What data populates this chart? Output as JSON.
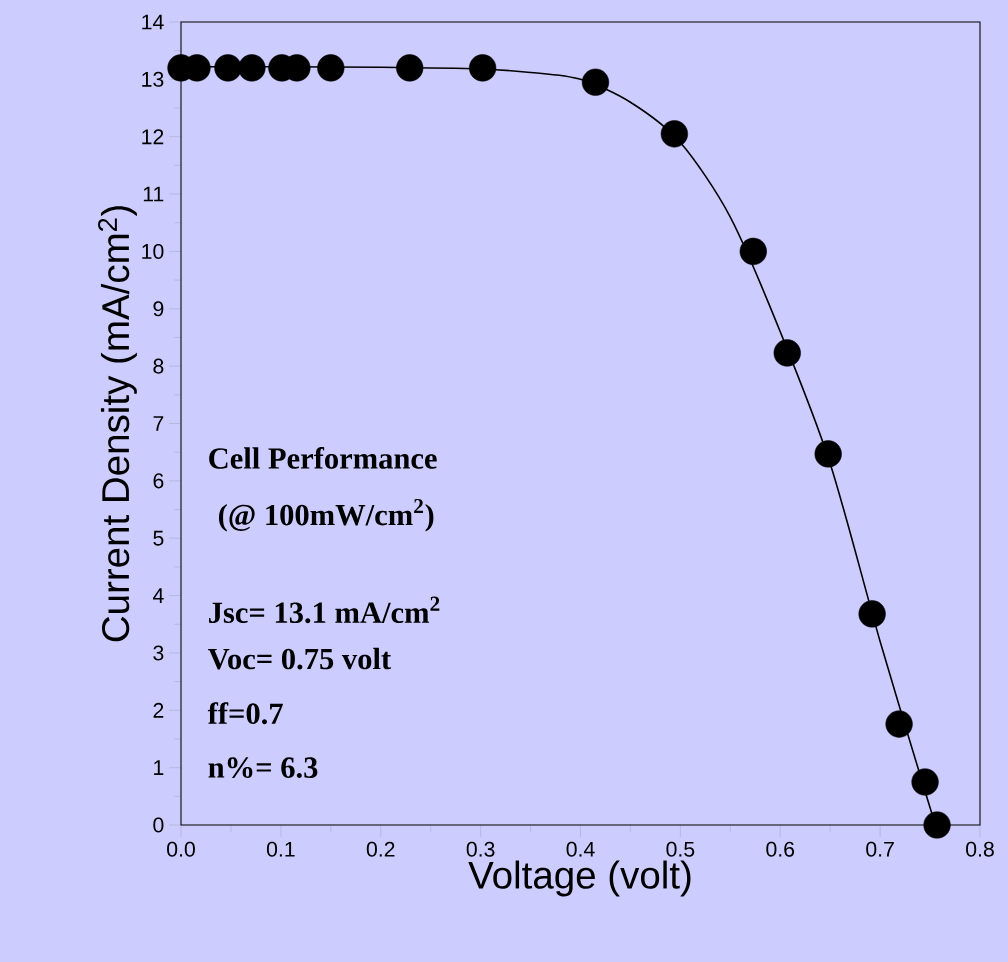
{
  "chart_data": {
    "type": "scatter",
    "xlabel": "Voltage (volt)",
    "ylabel": "Current Density (mA/cm$^{2}$)",
    "xlim": [
      0,
      0.8
    ],
    "ylim": [
      0,
      14
    ],
    "xticks": [
      {
        "value": 0,
        "label": "0.0"
      },
      0.1,
      0.2,
      0.3,
      0.4,
      0.5,
      0.6,
      0.7,
      0.8
    ],
    "yticks": [
      0,
      1,
      2,
      3,
      4,
      5,
      6,
      7,
      8,
      9,
      10,
      11,
      12,
      13,
      14
    ],
    "series": [
      {
        "marker": "circle",
        "color": "#000000",
        "x": [
          0,
          0.016,
          0.047,
          0.071,
          0.101,
          0.116,
          0.15,
          0.229,
          0.302,
          0.415,
          0.494,
          0.573,
          0.607,
          0.648,
          0.692,
          0.719,
          0.745,
          0.757
        ],
        "values": [
          13.2,
          13.2,
          13.2,
          13.2,
          13.2,
          13.2,
          13.2,
          13.2,
          13.2,
          12.95,
          12.05,
          10.0,
          8.23,
          6.47,
          3.68,
          1.76,
          0.75,
          0
        ]
      },
      {
        "type": "line",
        "marker": "none",
        "color": "#000000",
        "x": [
          0,
          0.1,
          0.2,
          0.3,
          0.35,
          0.4,
          0.45,
          0.5,
          0.55,
          0.6,
          0.65,
          0.7,
          0.75,
          0.757
        ],
        "values": [
          13.22,
          13.22,
          13.21,
          13.18,
          13.12,
          13.0,
          12.6,
          11.9,
          10.6,
          8.6,
          6.3,
          3.2,
          0.3,
          0
        ]
      }
    ],
    "annotations": [
      "**Cell Performance**",
      "**(@ 100mW/cm$^{2}$)**",
      "**Jsc= 13.1 mA/cm$^{2}$**",
      "**Voc= 0.75 volt**",
      "**ff=0.7**",
      "**n%= 6.3**"
    ]
  }
}
